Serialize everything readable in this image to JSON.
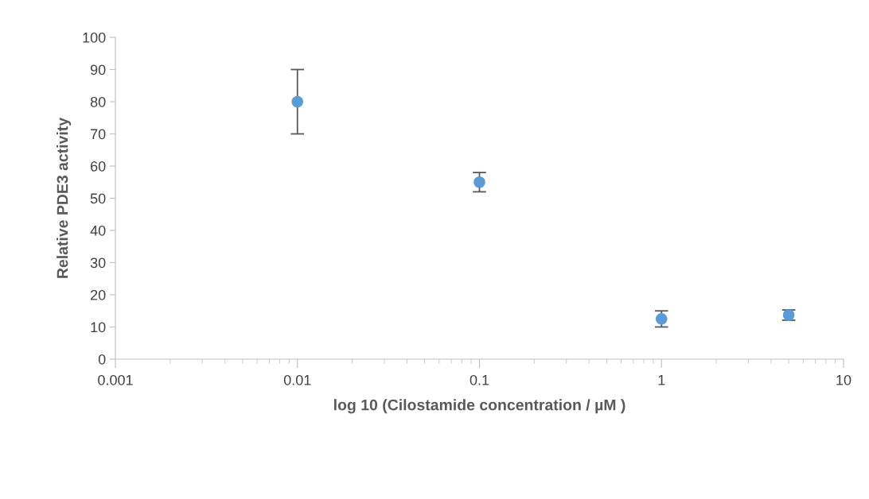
{
  "chart_data": {
    "type": "scatter",
    "xlabel": "log 10 (Cilostamide concentration / µM )",
    "ylabel": "Relative PDE3 activity",
    "log": "x",
    "x": [
      0.01,
      0.1,
      1,
      5
    ],
    "values": [
      80,
      55,
      12.5,
      13.7
    ],
    "errors": [
      10,
      3,
      2.5,
      1.6
    ],
    "color": "#5b9bd5",
    "marker": "circle",
    "grid": false,
    "legend": false,
    "xlim": [
      0.001,
      10
    ],
    "xticks": [
      0.001,
      0.01,
      0.1,
      1,
      10
    ],
    "ylim": [
      0,
      100
    ],
    "yticks": [
      0,
      10,
      20,
      30,
      40,
      50,
      60,
      70,
      80,
      90,
      100
    ]
  }
}
